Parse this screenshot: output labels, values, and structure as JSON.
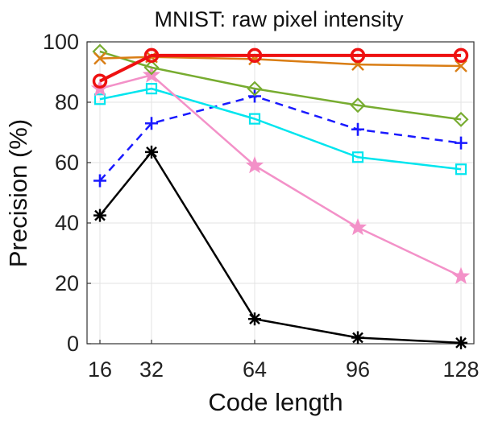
{
  "chart_data": {
    "type": "line",
    "title": "MNIST: raw pixel intensity",
    "xlabel": "Code length",
    "ylabel": "Precision (%)",
    "x": [
      16,
      32,
      64,
      96,
      128
    ],
    "xticks": [
      "16",
      "32",
      "64",
      "96",
      "128"
    ],
    "yticks": [
      "0",
      "20",
      "40",
      "60",
      "80",
      "100"
    ],
    "xlim": [
      12,
      132
    ],
    "ylim": [
      0,
      100
    ],
    "grid": true,
    "legend": "none",
    "series": [
      {
        "color": "#000000",
        "marker": "asterisk",
        "dash": "solid",
        "values": [
          42.5,
          63.5,
          8.2,
          2.0,
          0.3
        ]
      },
      {
        "color": "#1a1aff",
        "marker": "plus",
        "dash": "dashed",
        "values": [
          54.0,
          73.0,
          82.0,
          71.0,
          66.5
        ]
      },
      {
        "color": "#00e5ee",
        "marker": "square",
        "dash": "solid",
        "values": [
          81.0,
          84.5,
          74.5,
          61.8,
          57.8
        ]
      },
      {
        "color": "#f391c8",
        "marker": "star",
        "dash": "solid",
        "values": [
          84.5,
          89.0,
          59.0,
          38.5,
          22.3
        ]
      },
      {
        "color": "#77ac30",
        "marker": "diamond",
        "dash": "solid",
        "values": [
          96.8,
          91.5,
          84.5,
          79.0,
          74.3
        ]
      },
      {
        "color": "#d97d14",
        "marker": "x",
        "dash": "solid",
        "values": [
          94.5,
          95.0,
          94.3,
          92.5,
          92.0
        ]
      },
      {
        "color": "#ee1111",
        "marker": "circle",
        "dash": "solid",
        "values": [
          87.0,
          95.5,
          95.5,
          95.5,
          95.5
        ]
      }
    ]
  }
}
